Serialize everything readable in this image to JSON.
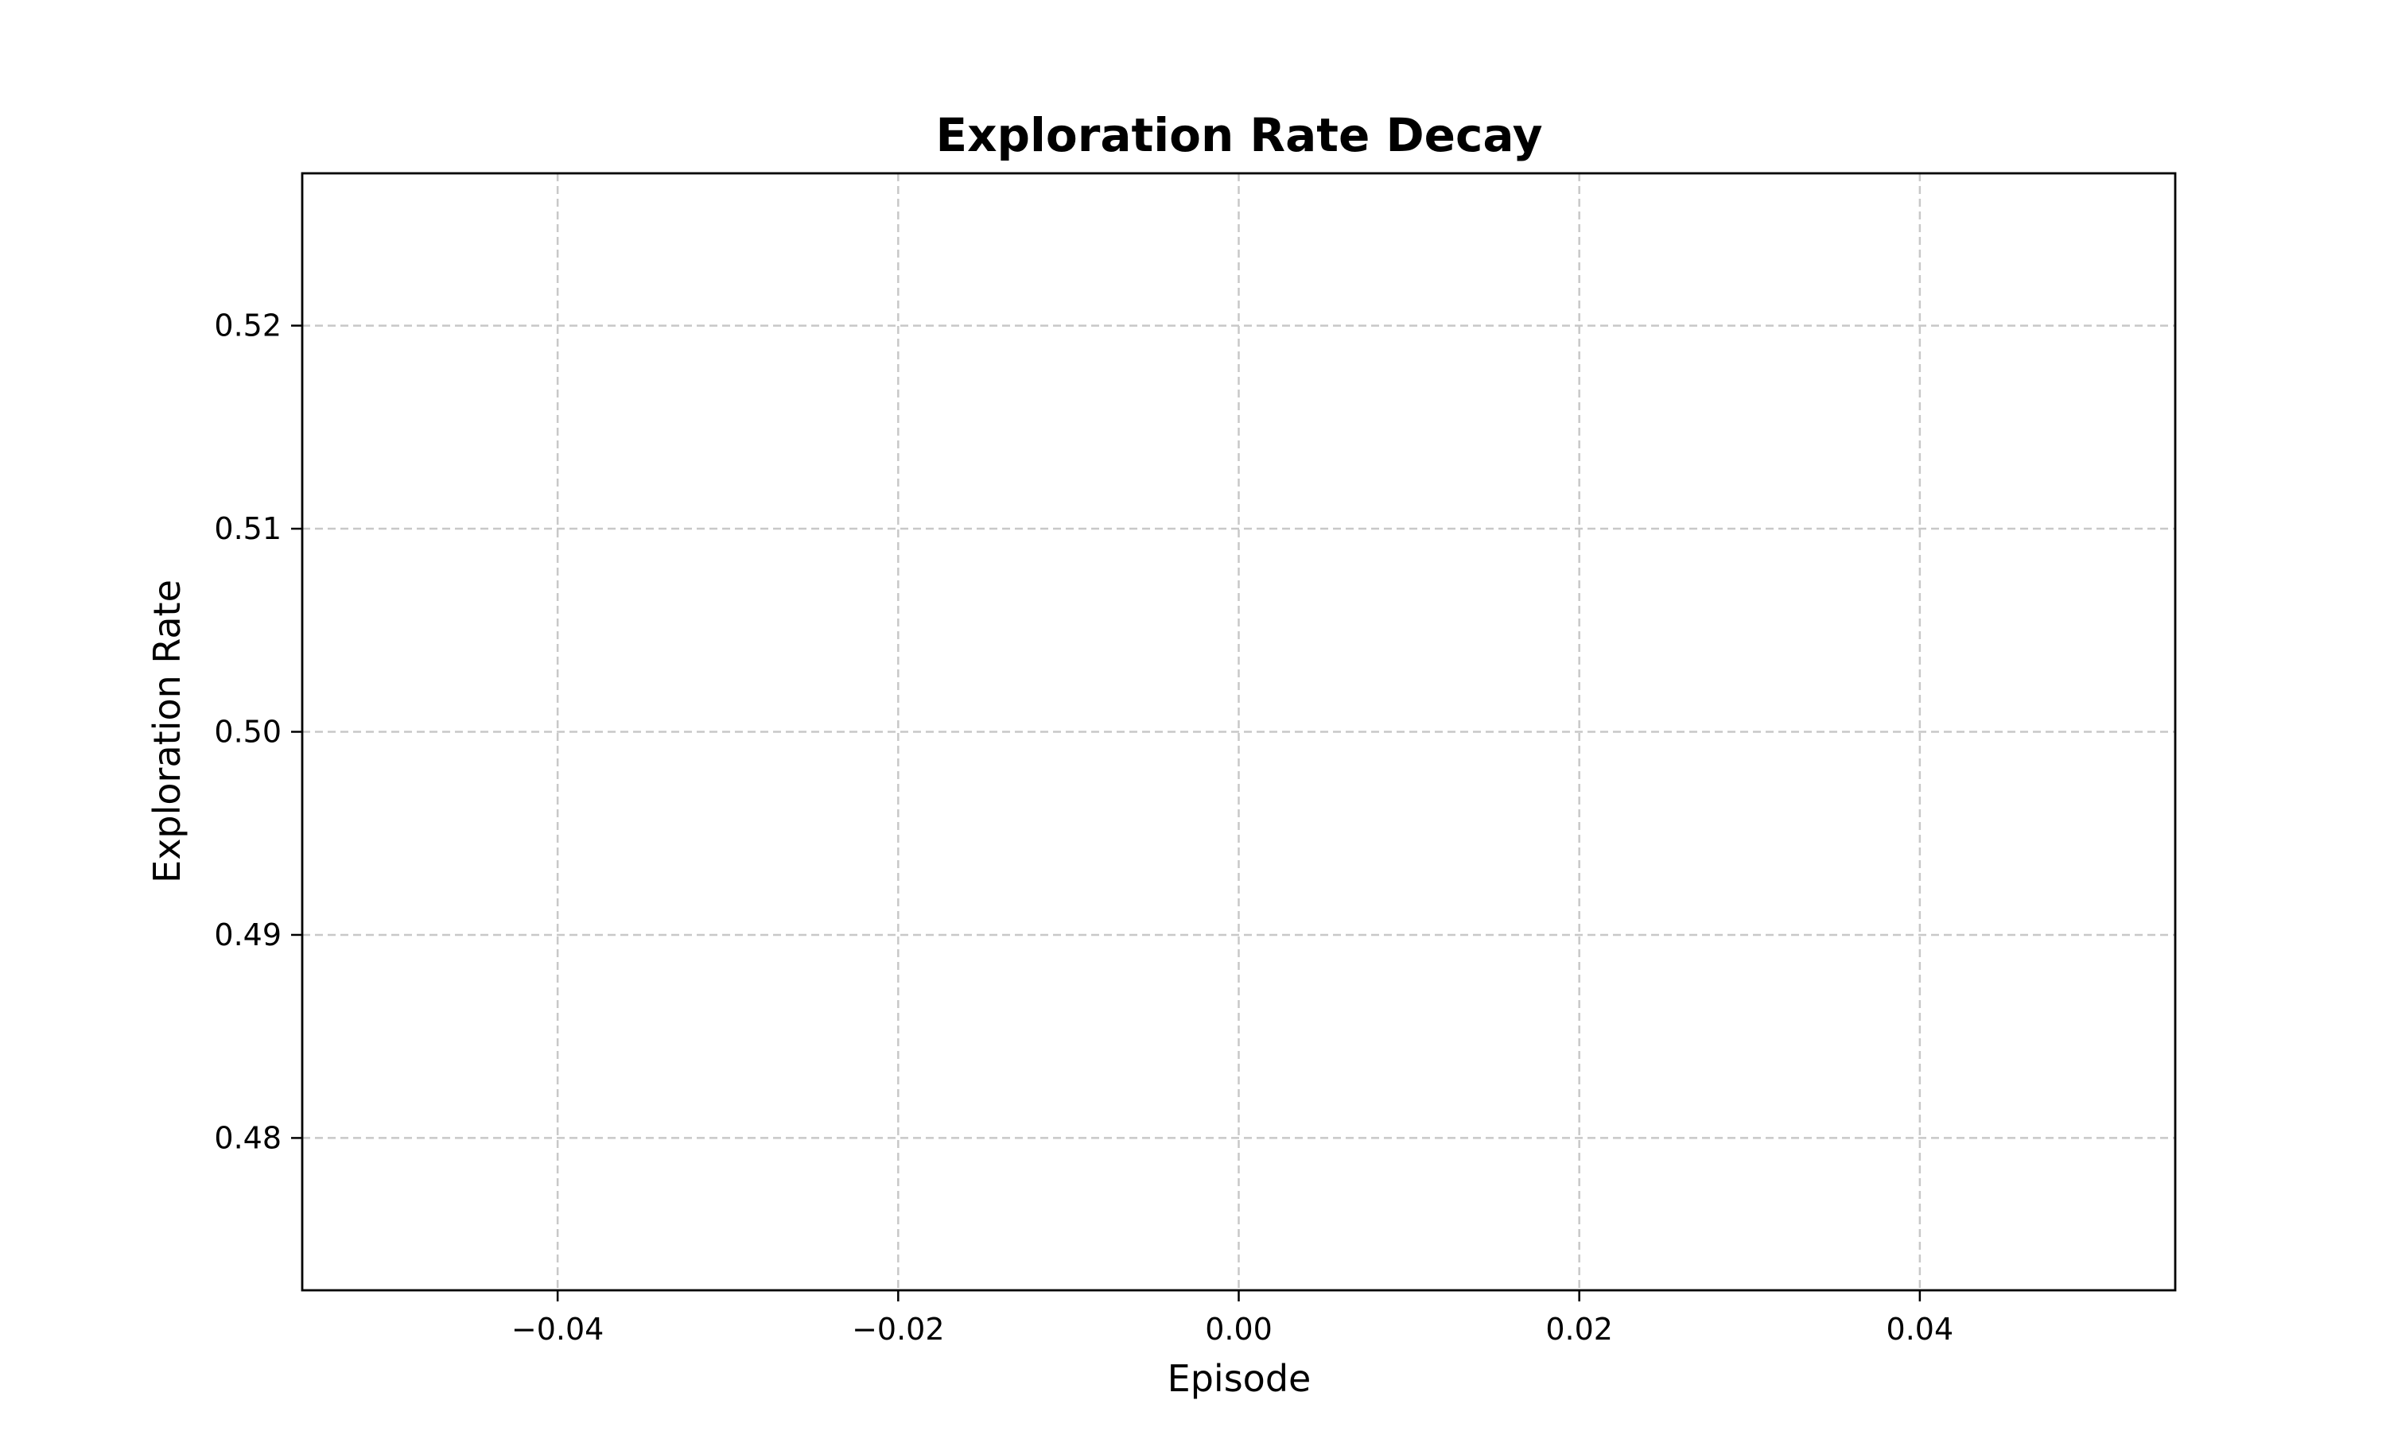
{
  "chart_data": {
    "type": "line",
    "title": "Exploration Rate Decay",
    "xlabel": "Episode",
    "ylabel": "Exploration Rate",
    "xlim": [
      -0.055,
      0.055
    ],
    "ylim": [
      0.4725,
      0.5275
    ],
    "x_ticks": [
      -0.04,
      -0.02,
      0.0,
      0.02,
      0.04
    ],
    "x_tick_labels": [
      "−0.04",
      "−0.02",
      "0.00",
      "0.02",
      "0.04"
    ],
    "y_ticks": [
      0.48,
      0.49,
      0.5,
      0.51,
      0.52
    ],
    "y_tick_labels": [
      "0.48",
      "0.49",
      "0.50",
      "0.51",
      "0.52"
    ],
    "grid": true,
    "grid_style": "dashed",
    "grid_color": "#c8c8c8",
    "series": [],
    "legend": "none"
  }
}
